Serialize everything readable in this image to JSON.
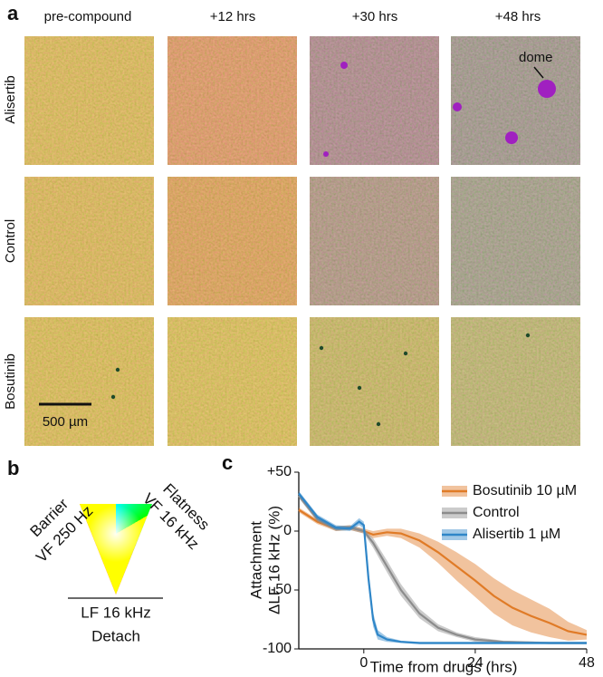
{
  "panel_labels": [
    "a",
    "b",
    "c"
  ],
  "columns": [
    "pre-compound",
    "+12 hrs",
    "+30 hrs",
    "+48 hrs"
  ],
  "rows": [
    "Alisertib",
    "Control",
    "Bosutinib"
  ],
  "scale_bar": "500 µm",
  "annotation": "dome",
  "color_key": {
    "top_left": [
      "Barrier",
      "VF 250 Hz"
    ],
    "top_right": [
      "Flatness",
      "VF 16 kHz"
    ],
    "bottom": [
      "LF 16 kHz",
      "Detach"
    ]
  },
  "chart_data": {
    "type": "line",
    "x_label": "Time from drugs (hrs)",
    "y_label": [
      "Attachment",
      "ΔLF 16 kHz (%)"
    ],
    "xlim": [
      -14,
      48
    ],
    "xticks": [
      0,
      24,
      48
    ],
    "ylim": [
      -100,
      50
    ],
    "yticks": [
      {
        "value": 50,
        "label": "+50"
      },
      0,
      -50,
      -100
    ],
    "legend": "top-right",
    "series": [
      {
        "name": "Bosutinib 10 µM",
        "color": "#e07b27",
        "x": [
          -14,
          -10,
          -6,
          -3,
          0,
          2,
          5,
          8,
          12,
          16,
          20,
          24,
          28,
          32,
          36,
          40,
          44,
          48
        ],
        "values": [
          18,
          8,
          2,
          3,
          0,
          -3,
          -1,
          -2,
          -8,
          -18,
          -30,
          -42,
          -55,
          -65,
          -72,
          -78,
          -85,
          -88
        ],
        "errors": [
          2,
          2,
          2,
          2,
          2,
          3,
          3,
          4,
          6,
          9,
          12,
          14,
          15,
          15,
          14,
          12,
          8,
          4
        ]
      },
      {
        "name": "Control",
        "color": "#8c8c8c",
        "x": [
          -14,
          -10,
          -6,
          -3,
          0,
          2,
          5,
          8,
          12,
          16,
          20,
          24,
          30,
          40,
          48
        ],
        "values": [
          30,
          10,
          2,
          3,
          0,
          -10,
          -30,
          -50,
          -70,
          -82,
          -88,
          -92,
          -94,
          -95,
          -95
        ],
        "errors": [
          2,
          2,
          2,
          2,
          2,
          4,
          5,
          5,
          4,
          3,
          2,
          2,
          1,
          1,
          1
        ]
      },
      {
        "name": "Alisertib 1 µM",
        "color": "#2f86c8",
        "x": [
          -14,
          -10,
          -6,
          -3,
          -1,
          0,
          1,
          2,
          3,
          5,
          8,
          12,
          24,
          48
        ],
        "values": [
          32,
          12,
          3,
          2,
          8,
          5,
          -40,
          -75,
          -88,
          -92,
          -94,
          -95,
          -95,
          -95
        ],
        "errors": [
          2,
          2,
          2,
          2,
          3,
          3,
          6,
          6,
          4,
          2,
          1,
          1,
          1,
          1
        ]
      }
    ]
  }
}
